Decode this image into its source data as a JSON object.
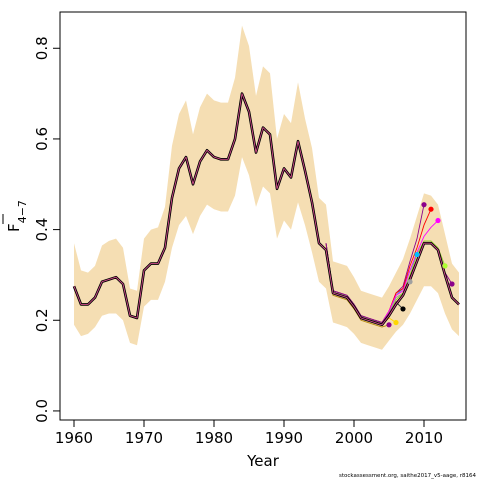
{
  "chart_data": {
    "type": "line",
    "xlabel": "Year",
    "ylabel_main": "F",
    "ylabel_sub": "4−7",
    "xlim": [
      1958,
      2016
    ],
    "ylim": [
      -0.02,
      0.88
    ],
    "xticks": [
      1960,
      1970,
      1980,
      1990,
      2000,
      2010
    ],
    "yticks": [
      0.0,
      0.2,
      0.4,
      0.6,
      0.8
    ],
    "ytick_labels": [
      "0.0",
      "0.2",
      "0.4",
      "0.6",
      "0.8"
    ],
    "grid": false,
    "legend": "none",
    "footnote": "stockassessment.org, saithe2017_v5-aage, r8164",
    "colors": {
      "band": "#f5deb3",
      "main_line": "#000000",
      "retro_inner": "#d14b8a",
      "retro_points": [
        "#b8860b",
        "#ffd700",
        "#808080",
        "#00bfff",
        "#8b008b",
        "#ff0000",
        "#ff00ff",
        "#adff2f",
        "#8b008b",
        "#000000"
      ]
    },
    "years": [
      1960,
      1961,
      1962,
      1963,
      1964,
      1965,
      1966,
      1967,
      1968,
      1969,
      1970,
      1971,
      1972,
      1973,
      1974,
      1975,
      1976,
      1977,
      1978,
      1979,
      1980,
      1981,
      1982,
      1983,
      1984,
      1985,
      1986,
      1987,
      1988,
      1989,
      1990,
      1991,
      1992,
      1993,
      1994,
      1995,
      1996,
      1997,
      1998,
      1999,
      2000,
      2001,
      2002,
      2003,
      2004,
      2005,
      2006,
      2007,
      2008,
      2009,
      2010,
      2011,
      2012,
      2013,
      2014,
      2015
    ],
    "estimate": [
      0.275,
      0.235,
      0.235,
      0.25,
      0.285,
      0.29,
      0.295,
      0.28,
      0.21,
      0.205,
      0.31,
      0.325,
      0.325,
      0.36,
      0.47,
      0.535,
      0.56,
      0.5,
      0.55,
      0.575,
      0.56,
      0.555,
      0.555,
      0.6,
      0.7,
      0.66,
      0.57,
      0.625,
      0.61,
      0.49,
      0.535,
      0.515,
      0.595,
      0.53,
      0.46,
      0.37,
      0.355,
      0.26,
      0.255,
      0.25,
      0.23,
      0.205,
      0.2,
      0.195,
      0.19,
      0.21,
      0.235,
      0.255,
      0.29,
      0.33,
      0.37,
      0.37,
      0.355,
      0.3,
      0.25,
      0.235
    ],
    "lower": [
      0.19,
      0.165,
      0.17,
      0.185,
      0.21,
      0.215,
      0.215,
      0.2,
      0.15,
      0.145,
      0.23,
      0.245,
      0.245,
      0.285,
      0.36,
      0.41,
      0.43,
      0.39,
      0.43,
      0.455,
      0.445,
      0.44,
      0.44,
      0.475,
      0.56,
      0.52,
      0.45,
      0.495,
      0.48,
      0.38,
      0.42,
      0.4,
      0.46,
      0.41,
      0.35,
      0.285,
      0.27,
      0.195,
      0.19,
      0.185,
      0.17,
      0.15,
      0.145,
      0.14,
      0.135,
      0.155,
      0.175,
      0.19,
      0.215,
      0.245,
      0.275,
      0.275,
      0.26,
      0.215,
      0.18,
      0.165
    ],
    "upper": [
      0.37,
      0.31,
      0.305,
      0.32,
      0.365,
      0.375,
      0.38,
      0.36,
      0.27,
      0.265,
      0.38,
      0.4,
      0.405,
      0.45,
      0.585,
      0.655,
      0.685,
      0.61,
      0.67,
      0.7,
      0.685,
      0.68,
      0.68,
      0.735,
      0.85,
      0.805,
      0.695,
      0.76,
      0.745,
      0.6,
      0.655,
      0.635,
      0.725,
      0.645,
      0.58,
      0.47,
      0.455,
      0.33,
      0.325,
      0.32,
      0.295,
      0.265,
      0.26,
      0.255,
      0.25,
      0.275,
      0.305,
      0.335,
      0.38,
      0.43,
      0.48,
      0.475,
      0.455,
      0.39,
      0.325,
      0.305
    ],
    "retro_lines": [
      {
        "x": [
          1996,
          1997,
          1998,
          1999,
          2000,
          2001,
          2002,
          2003,
          2004,
          2005
        ],
        "y": [
          0.36,
          0.255,
          0.25,
          0.245,
          0.225,
          0.2,
          0.195,
          0.19,
          0.185,
          0.19
        ]
      },
      {
        "x": [
          1996,
          1997,
          1998,
          1999,
          2000,
          2001,
          2002,
          2003,
          2004,
          2005,
          2006
        ],
        "y": [
          0.365,
          0.26,
          0.255,
          0.25,
          0.23,
          0.205,
          0.2,
          0.195,
          0.19,
          0.205,
          0.195
        ]
      },
      {
        "x": [
          1996,
          1997,
          1998,
          1999,
          2000,
          2001,
          2002,
          2003,
          2004,
          2005,
          2006,
          2007
        ],
        "y": [
          0.37,
          0.265,
          0.26,
          0.255,
          0.235,
          0.21,
          0.205,
          0.2,
          0.195,
          0.215,
          0.24,
          0.225
        ]
      },
      {
        "x": [
          1996,
          1997,
          1998,
          1999,
          2000,
          2001,
          2002,
          2003,
          2004,
          2005,
          2006,
          2007,
          2008
        ],
        "y": [
          0.37,
          0.265,
          0.26,
          0.255,
          0.235,
          0.21,
          0.205,
          0.2,
          0.195,
          0.22,
          0.25,
          0.26,
          0.285
        ]
      },
      {
        "x": [
          1996,
          1997,
          1998,
          1999,
          2000,
          2001,
          2002,
          2003,
          2004,
          2005,
          2006,
          2007,
          2008,
          2009
        ],
        "y": [
          0.37,
          0.265,
          0.26,
          0.255,
          0.235,
          0.21,
          0.205,
          0.2,
          0.195,
          0.22,
          0.255,
          0.27,
          0.31,
          0.345
        ]
      },
      {
        "x": [
          1996,
          1997,
          1998,
          1999,
          2000,
          2001,
          2002,
          2003,
          2004,
          2005,
          2006,
          2007,
          2008,
          2009,
          2010
        ],
        "y": [
          0.37,
          0.265,
          0.26,
          0.255,
          0.235,
          0.21,
          0.205,
          0.2,
          0.195,
          0.22,
          0.26,
          0.275,
          0.33,
          0.38,
          0.455
        ]
      },
      {
        "x": [
          1996,
          1997,
          1998,
          1999,
          2000,
          2001,
          2002,
          2003,
          2004,
          2005,
          2006,
          2007,
          2008,
          2009,
          2010,
          2011
        ],
        "y": [
          0.37,
          0.265,
          0.26,
          0.255,
          0.235,
          0.21,
          0.205,
          0.2,
          0.195,
          0.22,
          0.26,
          0.27,
          0.32,
          0.36,
          0.41,
          0.445
        ]
      },
      {
        "x": [
          1996,
          1997,
          1998,
          1999,
          2000,
          2001,
          2002,
          2003,
          2004,
          2005,
          2006,
          2007,
          2008,
          2009,
          2010,
          2011,
          2012
        ],
        "y": [
          0.37,
          0.265,
          0.26,
          0.255,
          0.235,
          0.21,
          0.205,
          0.2,
          0.195,
          0.22,
          0.255,
          0.265,
          0.31,
          0.35,
          0.385,
          0.405,
          0.42
        ]
      },
      {
        "x": [
          1996,
          1997,
          1998,
          1999,
          2000,
          2001,
          2002,
          2003,
          2004,
          2005,
          2006,
          2007,
          2008,
          2009,
          2010,
          2011,
          2012,
          2013
        ],
        "y": [
          0.37,
          0.265,
          0.26,
          0.255,
          0.235,
          0.21,
          0.205,
          0.2,
          0.195,
          0.215,
          0.245,
          0.26,
          0.3,
          0.345,
          0.375,
          0.375,
          0.36,
          0.32
        ]
      },
      {
        "x": [
          1996,
          1997,
          1998,
          1999,
          2000,
          2001,
          2002,
          2003,
          2004,
          2005,
          2006,
          2007,
          2008,
          2009,
          2010,
          2011,
          2012,
          2013,
          2014
        ],
        "y": [
          0.37,
          0.265,
          0.26,
          0.255,
          0.235,
          0.21,
          0.205,
          0.2,
          0.195,
          0.215,
          0.24,
          0.255,
          0.295,
          0.335,
          0.37,
          0.37,
          0.355,
          0.305,
          0.28
        ]
      }
    ],
    "retro_points": [
      {
        "x": 2005,
        "y": 0.19,
        "color": "#8b008b"
      },
      {
        "x": 2006,
        "y": 0.195,
        "color": "#ffd700"
      },
      {
        "x": 2007,
        "y": 0.225,
        "color": "#000000"
      },
      {
        "x": 2008,
        "y": 0.285,
        "color": "#a0a0a0"
      },
      {
        "x": 2009,
        "y": 0.345,
        "color": "#00bfff"
      },
      {
        "x": 2010,
        "y": 0.455,
        "color": "#8b008b"
      },
      {
        "x": 2011,
        "y": 0.445,
        "color": "#ff0000"
      },
      {
        "x": 2012,
        "y": 0.42,
        "color": "#ff00ff"
      },
      {
        "x": 2013,
        "y": 0.32,
        "color": "#adff2f"
      },
      {
        "x": 2014,
        "y": 0.28,
        "color": "#8b008b"
      }
    ]
  }
}
